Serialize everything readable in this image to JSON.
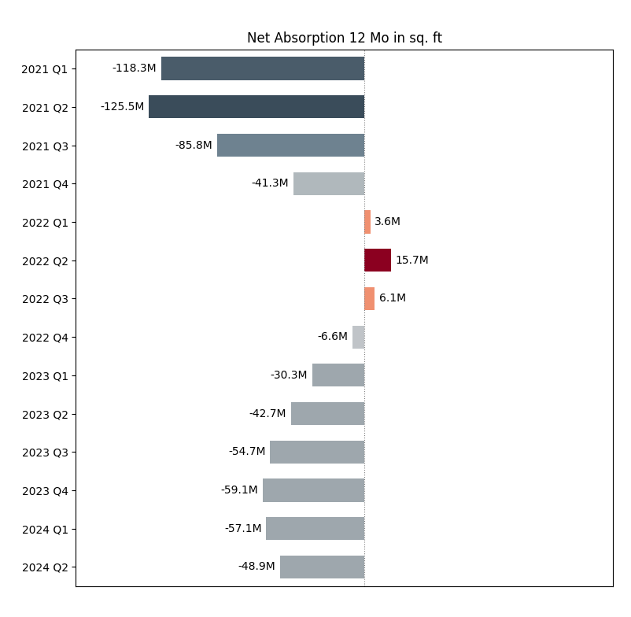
{
  "chart_data": {
    "type": "bar",
    "orientation": "horizontal",
    "title": "Net Absorption 12 Mo in sq. ft",
    "categories": [
      "2021 Q1",
      "2021 Q2",
      "2021 Q3",
      "2021 Q4",
      "2022 Q1",
      "2022 Q2",
      "2022 Q3",
      "2022 Q4",
      "2023 Q1",
      "2023 Q2",
      "2023 Q3",
      "2023 Q4",
      "2024 Q1",
      "2024 Q2"
    ],
    "values": [
      -118.3,
      -125.5,
      -85.8,
      -41.3,
      3.6,
      15.7,
      6.1,
      -6.6,
      -30.3,
      -42.7,
      -54.7,
      -59.1,
      -57.1,
      -48.9
    ],
    "value_labels": [
      "-118.3M",
      "-125.5M",
      "-85.8M",
      "-41.3M",
      "3.6M",
      "15.7M",
      "6.1M",
      "-6.6M",
      "-30.3M",
      "-42.7M",
      "-54.7M",
      "-59.1M",
      "-57.1M",
      "-48.9M"
    ],
    "data_labels": true,
    "colors": [
      "#4a5c6a",
      "#3a4c5a",
      "#6e8290",
      "#b0b8bc",
      "#f09070",
      "#8b0020",
      "#f09070",
      "#c0c4c8",
      "#9ea7ad",
      "#9ea7ad",
      "#9ea7ad",
      "#9ea7ad",
      "#9ea7ad",
      "#9ea7ad"
    ],
    "xlim": [
      -168,
      145
    ],
    "xticks": [],
    "tick_labels": "y",
    "grid": false
  }
}
